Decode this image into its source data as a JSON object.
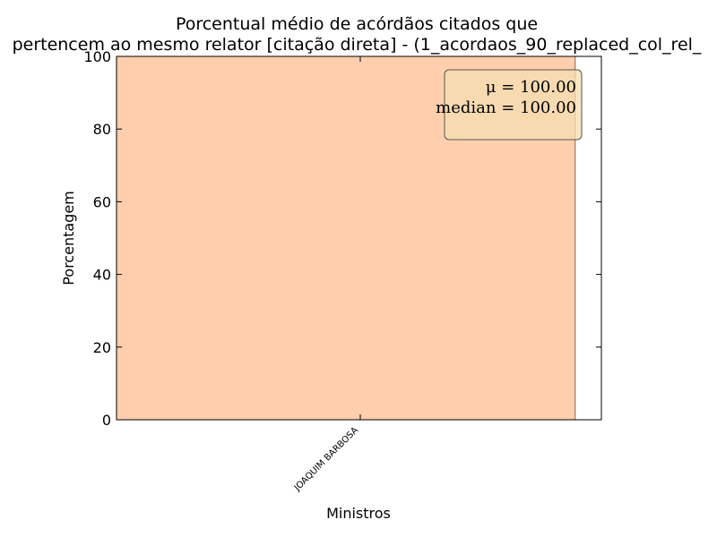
{
  "chart_data": {
    "type": "bar",
    "title": [
      "Porcentual médio de acórdãos citados que",
      "pertencem ao mesmo relator [citação direta] - (1_acordaos_90_replaced_col_rel_"
    ],
    "xlabel": "Ministros",
    "ylabel": "Porcentagem",
    "categories": [
      "JOAQUIM BARBOSA"
    ],
    "values": [
      100
    ],
    "ylim": [
      0,
      100
    ],
    "yticks": [
      "0",
      "20",
      "40",
      "60",
      "80",
      "100"
    ],
    "grid": false,
    "colors": {
      "bar": "#ffcead",
      "bar_edge": "#7a6a60",
      "stats_box": "#f5deb3",
      "stats_box_edge": "#555555"
    },
    "annotation": {
      "position": "top-right",
      "mean_label": "μ = 100.00",
      "median_label": "median = 100.00"
    }
  }
}
